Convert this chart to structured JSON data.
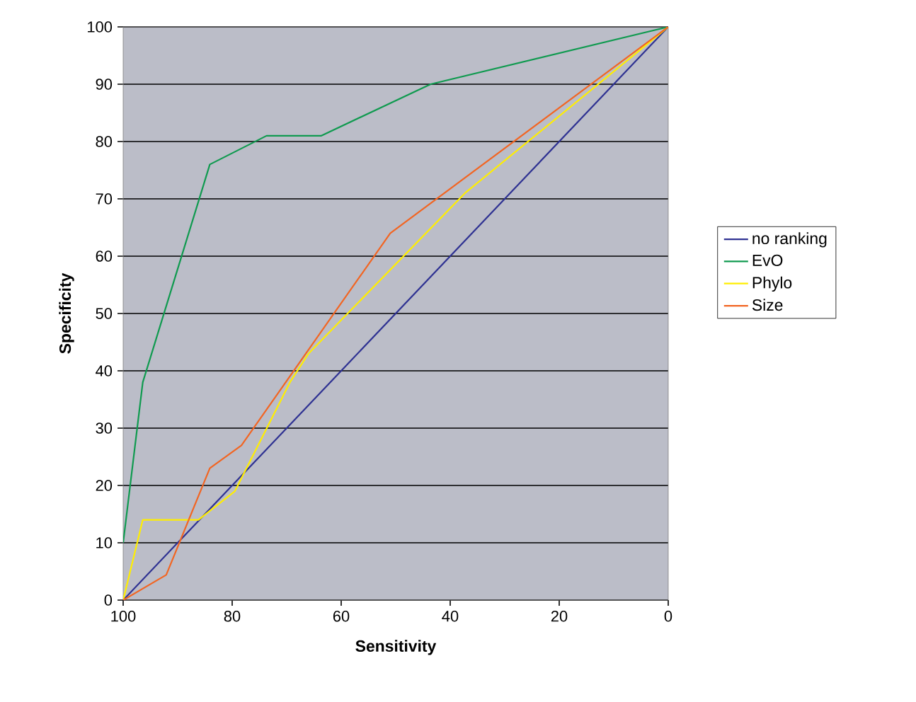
{
  "chart_data": {
    "type": "line",
    "xlabel": "Sensitivity",
    "ylabel": "Specificity",
    "xlim": [
      100,
      0
    ],
    "xticks": [
      100,
      80,
      60,
      40,
      20,
      0
    ],
    "ylim": [
      0,
      100
    ],
    "yticks": [
      0,
      10,
      20,
      30,
      40,
      50,
      60,
      70,
      80,
      90,
      100
    ],
    "grid": "y",
    "legend": "right",
    "marker": "none",
    "line_style": "solid",
    "series": [
      {
        "name": "no ranking",
        "color": "#2e3192",
        "x": [
          100,
          0
        ],
        "values": [
          0,
          100
        ]
      },
      {
        "name": "EvO",
        "color": "#0f9a4f",
        "x": [
          100,
          96.4,
          84.1,
          73.7,
          63.7,
          43.6,
          0
        ],
        "values": [
          10,
          38,
          76,
          81,
          81,
          90,
          100
        ]
      },
      {
        "name": "Phylo",
        "color": "#ffee00",
        "x": [
          100,
          96.4,
          86.2,
          79.5,
          69.4,
          66,
          37.3,
          0
        ],
        "values": [
          0,
          14,
          14,
          19,
          38,
          43,
          71,
          100
        ]
      },
      {
        "name": "Size",
        "color": "#f26522",
        "x": [
          100,
          92.1,
          84.1,
          78.3,
          51,
          0
        ],
        "values": [
          0,
          4.4,
          23,
          27,
          64,
          100
        ]
      }
    ]
  }
}
